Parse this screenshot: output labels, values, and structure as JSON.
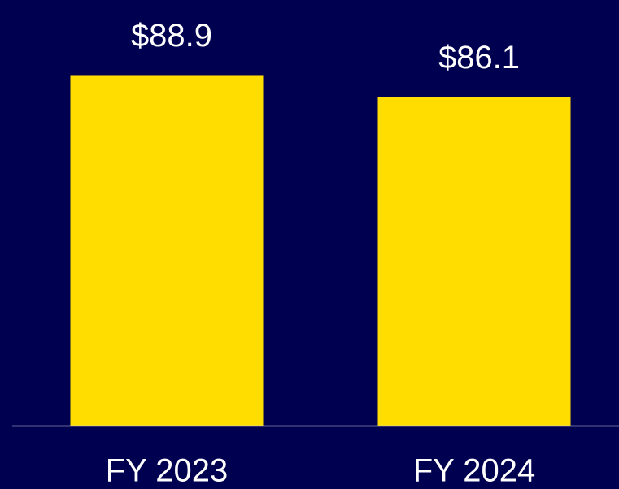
{
  "chart_data": {
    "type": "bar",
    "categories": [
      "FY 2023",
      "FY 2024"
    ],
    "values": [
      88.9,
      86.1
    ],
    "value_labels": [
      "$88.9",
      "$86.1"
    ],
    "color": "#ffdd00",
    "ylim": [
      44,
      98
    ],
    "grid": false
  }
}
